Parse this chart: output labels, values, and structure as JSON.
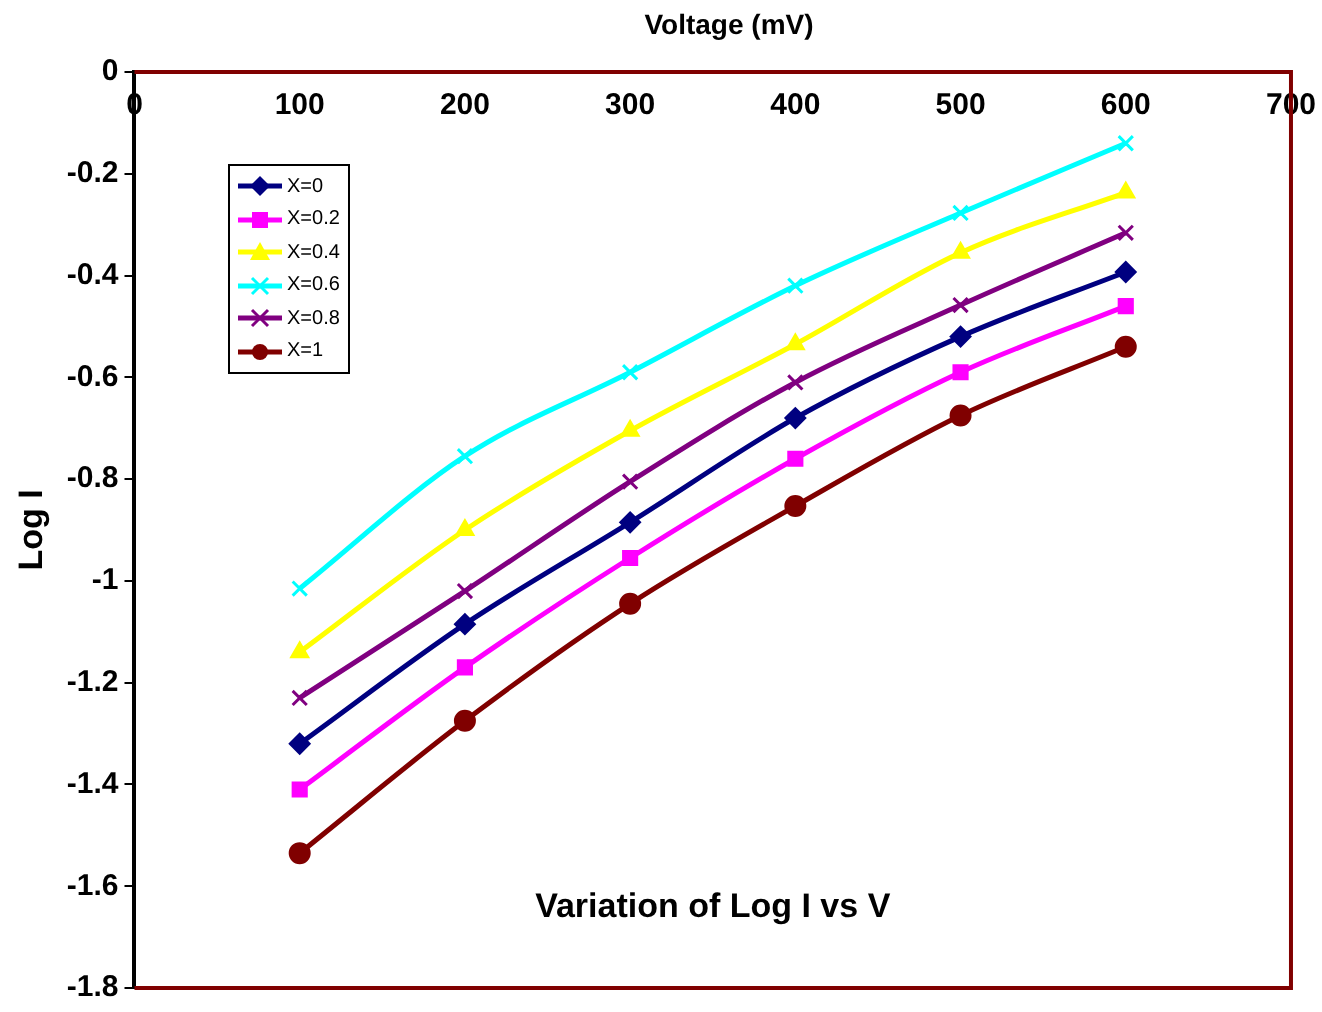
{
  "chart_data": {
    "type": "line",
    "xlabel": "Voltage (mV)",
    "ylabel": "Log I",
    "annotations": [
      "Variation of Log I vs V"
    ],
    "x": [
      100,
      200,
      300,
      400,
      500,
      600
    ],
    "xlim": [
      0,
      700
    ],
    "xticks": [
      0,
      100,
      200,
      300,
      400,
      500,
      600,
      700
    ],
    "ylim": [
      -1.8,
      0
    ],
    "yticks": [
      0,
      -0.2,
      -0.4,
      -0.6,
      -0.8,
      -1,
      -1.2,
      -1.4,
      -1.6,
      -1.8
    ],
    "grid": false,
    "legend": "top left",
    "series": [
      {
        "name": "X=0",
        "color": "#000080",
        "marker": "diamond",
        "values": [
          -1.32,
          -1.085,
          -0.885,
          -0.68,
          -0.52,
          -0.393
        ]
      },
      {
        "name": "X=0.2",
        "color": "#ff00ff",
        "marker": "square",
        "values": [
          -1.41,
          -1.17,
          -0.955,
          -0.76,
          -0.59,
          -0.46
        ]
      },
      {
        "name": "X=0.4",
        "color": "#ffff00",
        "marker": "triangle",
        "values": [
          -1.14,
          -0.9,
          -0.705,
          -0.535,
          -0.355,
          -0.237
        ]
      },
      {
        "name": "X=0.6",
        "color": "#00ffff",
        "marker": "cross",
        "values": [
          -1.015,
          -0.755,
          -0.59,
          -0.42,
          -0.277,
          -0.14
        ]
      },
      {
        "name": "X=0.8",
        "color": "#800080",
        "marker": "cross",
        "values": [
          -1.23,
          -1.02,
          -0.805,
          -0.61,
          -0.458,
          -0.316
        ]
      },
      {
        "name": "X=1",
        "color": "#800000",
        "marker": "circle",
        "values": [
          -1.535,
          -1.275,
          -1.045,
          -0.853,
          -0.675,
          -0.54
        ]
      }
    ]
  }
}
